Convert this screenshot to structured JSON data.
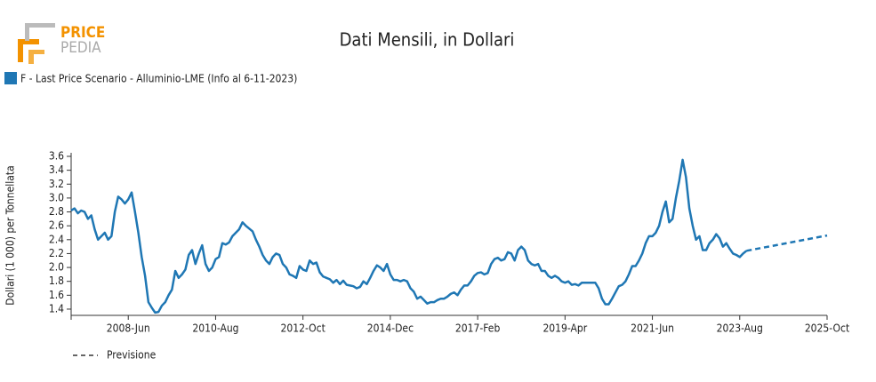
{
  "logo": {
    "top": "PRICE",
    "bottom": "PEDIA"
  },
  "chart_data": {
    "type": "line",
    "title": "Dati Mensili, in Dollari",
    "y_label": "Dollari (1 000) per Tonnellata",
    "xlim": [
      "2007-01",
      "2025-10"
    ],
    "xticks": [
      {
        "value": "2008-06",
        "label": "2008-Jun"
      },
      {
        "value": "2010-08",
        "label": "2010-Aug"
      },
      {
        "value": "2012-10",
        "label": "2012-Oct"
      },
      {
        "value": "2014-12",
        "label": "2014-Dec"
      },
      {
        "value": "2017-02",
        "label": "2017-Feb"
      },
      {
        "value": "2019-04",
        "label": "2019-Apr"
      },
      {
        "value": "2021-06",
        "label": "2021-Jun"
      },
      {
        "value": "2023-08",
        "label": "2023-Aug"
      },
      {
        "value": "2025-10",
        "label": "2025-Oct"
      }
    ],
    "ylim": [
      1.31,
      3.6
    ],
    "yticks": [
      1.4,
      1.6,
      1.8,
      {
        "value": 2,
        "label": "2.0"
      },
      2.2,
      2.4,
      2.6,
      2.8,
      {
        "value": 3,
        "label": "3.0"
      },
      3.2,
      3.4,
      3.6
    ],
    "series": [
      {
        "name": "F - Last Price Scenario - Alluminio-LME (Info al 6-11-2023)",
        "color": "#1f77b4",
        "style": "solid",
        "x": [
          "2007-01",
          "2007-02",
          "2007-03",
          "2007-04",
          "2007-05",
          "2007-06",
          "2007-07",
          "2007-08",
          "2007-09",
          "2007-10",
          "2007-11",
          "2007-12",
          "2008-01",
          "2008-02",
          "2008-03",
          "2008-04",
          "2008-05",
          "2008-06",
          "2008-07",
          "2008-08",
          "2008-09",
          "2008-10",
          "2008-11",
          "2008-12",
          "2009-01",
          "2009-02",
          "2009-03",
          "2009-04",
          "2009-05",
          "2009-06",
          "2009-07",
          "2009-08",
          "2009-09",
          "2009-10",
          "2009-11",
          "2009-12",
          "2010-01",
          "2010-02",
          "2010-03",
          "2010-04",
          "2010-05",
          "2010-06",
          "2010-07",
          "2010-08",
          "2010-09",
          "2010-10",
          "2010-11",
          "2010-12",
          "2011-01",
          "2011-02",
          "2011-03",
          "2011-04",
          "2011-05",
          "2011-06",
          "2011-07",
          "2011-08",
          "2011-09",
          "2011-10",
          "2011-11",
          "2011-12",
          "2012-01",
          "2012-02",
          "2012-03",
          "2012-04",
          "2012-05",
          "2012-06",
          "2012-07",
          "2012-08",
          "2012-09",
          "2012-10",
          "2012-11",
          "2012-12",
          "2013-01",
          "2013-02",
          "2013-03",
          "2013-04",
          "2013-05",
          "2013-06",
          "2013-07",
          "2013-08",
          "2013-09",
          "2013-10",
          "2013-11",
          "2013-12",
          "2014-01",
          "2014-02",
          "2014-03",
          "2014-04",
          "2014-05",
          "2014-06",
          "2014-07",
          "2014-08",
          "2014-09",
          "2014-10",
          "2014-11",
          "2014-12",
          "2015-01",
          "2015-02",
          "2015-03",
          "2015-04",
          "2015-05",
          "2015-06",
          "2015-07",
          "2015-08",
          "2015-09",
          "2015-10",
          "2015-11",
          "2015-12",
          "2016-01",
          "2016-02",
          "2016-03",
          "2016-04",
          "2016-05",
          "2016-06",
          "2016-07",
          "2016-08",
          "2016-09",
          "2016-10",
          "2016-11",
          "2016-12",
          "2017-01",
          "2017-02",
          "2017-03",
          "2017-04",
          "2017-05",
          "2017-06",
          "2017-07",
          "2017-08",
          "2017-09",
          "2017-10",
          "2017-11",
          "2017-12",
          "2018-01",
          "2018-02",
          "2018-03",
          "2018-04",
          "2018-05",
          "2018-06",
          "2018-07",
          "2018-08",
          "2018-09",
          "2018-10",
          "2018-11",
          "2018-12",
          "2019-01",
          "2019-02",
          "2019-03",
          "2019-04",
          "2019-05",
          "2019-06",
          "2019-07",
          "2019-08",
          "2019-09",
          "2019-10",
          "2019-11",
          "2019-12",
          "2020-01",
          "2020-02",
          "2020-03",
          "2020-04",
          "2020-05",
          "2020-06",
          "2020-07",
          "2020-08",
          "2020-09",
          "2020-10",
          "2020-11",
          "2020-12",
          "2021-01",
          "2021-02",
          "2021-03",
          "2021-04",
          "2021-05",
          "2021-06",
          "2021-07",
          "2021-08",
          "2021-09",
          "2021-10",
          "2021-11",
          "2021-12",
          "2022-01",
          "2022-02",
          "2022-03",
          "2022-04",
          "2022-05",
          "2022-06",
          "2022-07",
          "2022-08",
          "2022-09",
          "2022-10",
          "2022-11",
          "2022-12",
          "2023-01",
          "2023-02",
          "2023-03",
          "2023-04",
          "2023-05",
          "2023-06",
          "2023-07",
          "2023-08",
          "2023-09",
          "2023-10"
        ],
        "values": [
          2.82,
          2.85,
          2.78,
          2.82,
          2.8,
          2.7,
          2.75,
          2.55,
          2.4,
          2.45,
          2.5,
          2.4,
          2.45,
          2.8,
          3.02,
          2.98,
          2.92,
          2.98,
          3.08,
          2.8,
          2.5,
          2.15,
          1.88,
          1.5,
          1.42,
          1.35,
          1.36,
          1.45,
          1.5,
          1.6,
          1.68,
          1.95,
          1.85,
          1.9,
          1.97,
          2.18,
          2.25,
          2.05,
          2.2,
          2.32,
          2.05,
          1.95,
          2.0,
          2.12,
          2.15,
          2.35,
          2.33,
          2.36,
          2.45,
          2.5,
          2.55,
          2.65,
          2.6,
          2.56,
          2.52,
          2.4,
          2.3,
          2.18,
          2.1,
          2.05,
          2.15,
          2.2,
          2.18,
          2.05,
          2.0,
          1.9,
          1.88,
          1.85,
          2.02,
          1.97,
          1.95,
          2.1,
          2.05,
          2.07,
          1.93,
          1.87,
          1.85,
          1.83,
          1.78,
          1.82,
          1.76,
          1.81,
          1.75,
          1.74,
          1.73,
          1.7,
          1.72,
          1.8,
          1.76,
          1.85,
          1.95,
          2.03,
          2.0,
          1.95,
          2.05,
          1.9,
          1.82,
          1.82,
          1.8,
          1.82,
          1.8,
          1.7,
          1.65,
          1.55,
          1.58,
          1.53,
          1.48,
          1.5,
          1.5,
          1.53,
          1.55,
          1.55,
          1.58,
          1.62,
          1.64,
          1.6,
          1.68,
          1.74,
          1.74,
          1.8,
          1.88,
          1.92,
          1.93,
          1.9,
          1.92,
          2.05,
          2.12,
          2.14,
          2.1,
          2.12,
          2.22,
          2.2,
          2.1,
          2.25,
          2.3,
          2.25,
          2.1,
          2.05,
          2.03,
          2.05,
          1.95,
          1.95,
          1.88,
          1.85,
          1.88,
          1.85,
          1.8,
          1.78,
          1.8,
          1.75,
          1.76,
          1.74,
          1.78,
          1.78,
          1.78,
          1.78,
          1.78,
          1.7,
          1.55,
          1.47,
          1.47,
          1.55,
          1.64,
          1.73,
          1.75,
          1.8,
          1.9,
          2.02,
          2.02,
          2.1,
          2.2,
          2.35,
          2.45,
          2.45,
          2.5,
          2.6,
          2.8,
          2.95,
          2.65,
          2.7,
          3.0,
          3.25,
          3.55,
          3.3,
          2.85,
          2.6,
          2.4,
          2.45,
          2.25,
          2.25,
          2.35,
          2.4,
          2.48,
          2.42,
          2.3,
          2.35,
          2.27,
          2.2,
          2.18,
          2.15,
          2.2,
          2.24
        ]
      },
      {
        "name": "Previsione",
        "color": "#1f77b4",
        "style": "dashed",
        "x": [
          "2023-10",
          "2025-10"
        ],
        "values": [
          2.24,
          2.46
        ]
      }
    ]
  }
}
